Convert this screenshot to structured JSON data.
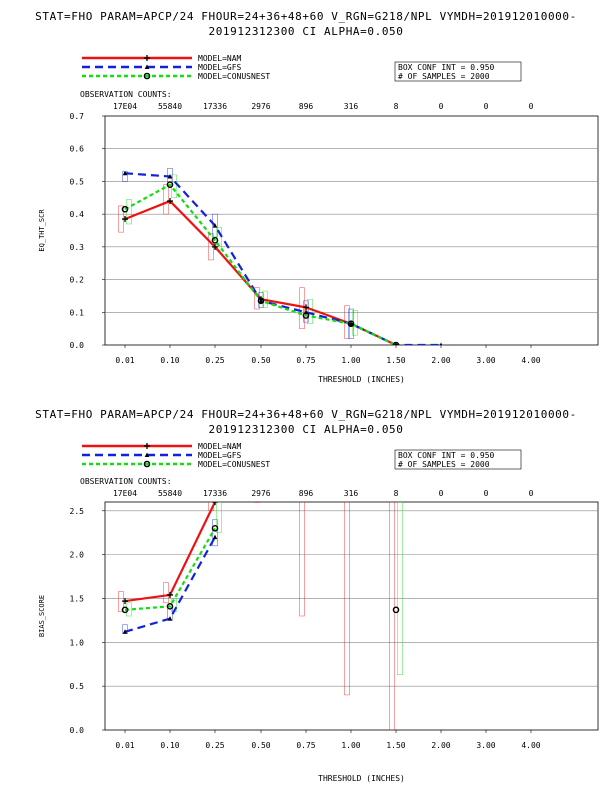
{
  "charts": [
    {
      "header_line1": "STAT=FHO PARAM=APCP/24 FHOUR=24+36+48+60 V_RGN=G218/NPL VYMDH=201912010000-",
      "header_line2": "201912312300 CI ALPHA=0.050",
      "legend": [
        "MODEL=NAM",
        "MODEL=GFS",
        "MODEL=CONUSNEST"
      ],
      "box_conf_int": "BOX CONF INT = 0.950",
      "num_samples": "# OF SAMPLES =  2000",
      "obs_label": "OBSERVATION COUNTS:",
      "obs_counts": [
        "17E04",
        "55840",
        "17336",
        "2976",
        "896",
        "316",
        "8",
        "0",
        "0",
        "0"
      ],
      "thresholds": [
        "0.01",
        "0.10",
        "0.25",
        "0.50",
        "0.75",
        "1.00",
        "1.50",
        "2.00",
        "3.00",
        "4.00"
      ],
      "xlabel": "THRESHOLD (INCHES)",
      "ylabel": "EQ_THT_SCR",
      "y_ticks": [
        "0.0",
        "0.1",
        "0.2",
        "0.3",
        "0.4",
        "0.5",
        "0.6",
        "0.7"
      ]
    },
    {
      "header_line1": "STAT=FHO PARAM=APCP/24 FHOUR=24+36+48+60 V_RGN=G218/NPL VYMDH=201912010000-",
      "header_line2": "201912312300 CI ALPHA=0.050",
      "legend": [
        "MODEL=NAM",
        "MODEL=GFS",
        "MODEL=CONUSNEST"
      ],
      "box_conf_int": "BOX CONF INT = 0.950",
      "num_samples": "# OF SAMPLES =  2000",
      "obs_label": "OBSERVATION COUNTS:",
      "obs_counts": [
        "17E04",
        "55840",
        "17336",
        "2976",
        "896",
        "316",
        "8",
        "0",
        "0",
        "0"
      ],
      "thresholds": [
        "0.01",
        "0.10",
        "0.25",
        "0.50",
        "0.75",
        "1.00",
        "1.50",
        "2.00",
        "3.00",
        "4.00"
      ],
      "xlabel": "THRESHOLD (INCHES)",
      "ylabel": "BIAS_SCORE",
      "y_ticks": [
        "0.0",
        "0.5",
        "1.0",
        "1.5",
        "2.0",
        "2.5"
      ]
    }
  ],
  "colors": {
    "NAM": "#ee1111",
    "GFS": "#1122dd",
    "CONUSNEST": "#11dd11",
    "grid": "#888888"
  },
  "chart_data": [
    {
      "type": "line",
      "title": "STAT=FHO PARAM=APCP/24 FHOUR=24+36+48+60 V_RGN=G218/NPL VYMDH=201912010000-201912312300 CI ALPHA=0.050",
      "xlabel": "THRESHOLD (INCHES)",
      "ylabel": "EQ_THT_SCR",
      "categories": [
        "0.01",
        "0.10",
        "0.25",
        "0.50",
        "0.75",
        "1.00",
        "1.50",
        "2.00",
        "3.00",
        "4.00"
      ],
      "ylim": [
        0,
        0.7
      ],
      "y_ticks": [
        0,
        0.1,
        0.2,
        0.3,
        0.4,
        0.5,
        0.6,
        0.7
      ],
      "grid": true,
      "legend": "top-left",
      "series": [
        {
          "name": "MODEL=NAM",
          "values": [
            0.385,
            0.44,
            0.3,
            0.14,
            0.115,
            0.065,
            0.0,
            null,
            null,
            null
          ]
        },
        {
          "name": "MODEL=GFS",
          "values": [
            0.525,
            0.515,
            0.365,
            0.135,
            0.1,
            0.065,
            0.0,
            0.0,
            null,
            null
          ]
        },
        {
          "name": "MODEL=CONUSNEST",
          "values": [
            0.415,
            0.49,
            0.32,
            0.135,
            0.09,
            0.065,
            0.0,
            null,
            null,
            null
          ]
        }
      ],
      "ci_boxes": [
        {
          "name": "MODEL=NAM",
          "boxes": [
            [
              0.345,
              0.425
            ],
            [
              0.4,
              0.49
            ],
            [
              0.26,
              0.34
            ],
            [
              0.11,
              0.175
            ],
            [
              0.05,
              0.175
            ],
            [
              0.02,
              0.12
            ],
            null,
            null,
            null,
            null
          ]
        },
        {
          "name": "MODEL=GFS",
          "boxes": [
            [
              0.5,
              0.53
            ],
            [
              0.49,
              0.54
            ],
            [
              0.33,
              0.4
            ],
            [
              0.115,
              0.16
            ],
            [
              0.07,
              0.135
            ],
            [
              0.02,
              0.11
            ],
            null,
            null,
            null,
            null
          ]
        },
        {
          "name": "MODEL=CONUSNEST",
          "boxes": [
            [
              0.37,
              0.445
            ],
            [
              0.45,
              0.52
            ],
            [
              0.29,
              0.36
            ],
            [
              0.115,
              0.165
            ],
            [
              0.065,
              0.14
            ],
            [
              0.03,
              0.105
            ],
            null,
            null,
            null,
            null
          ]
        }
      ]
    },
    {
      "type": "line",
      "title": "STAT=FHO PARAM=APCP/24 FHOUR=24+36+48+60 V_RGN=G218/NPL VYMDH=201912010000-201912312300 CI ALPHA=0.050",
      "xlabel": "THRESHOLD (INCHES)",
      "ylabel": "BIAS_SCORE",
      "categories": [
        "0.01",
        "0.10",
        "0.25",
        "0.50",
        "0.75",
        "1.00",
        "1.50",
        "2.00",
        "3.00",
        "4.00"
      ],
      "ylim": [
        0,
        2.6
      ],
      "y_ticks": [
        0,
        0.5,
        1.0,
        1.5,
        2.0,
        2.5
      ],
      "grid": true,
      "legend": "top-left",
      "series": [
        {
          "name": "MODEL=NAM",
          "values": [
            1.47,
            1.54,
            2.6,
            null,
            null,
            null,
            null,
            null,
            null,
            null
          ]
        },
        {
          "name": "MODEL=GFS",
          "values": [
            1.12,
            1.27,
            2.2,
            null,
            null,
            null,
            null,
            null,
            null,
            null
          ]
        },
        {
          "name": "MODEL=CONUSNEST",
          "values": [
            1.37,
            1.41,
            2.3,
            null,
            null,
            null,
            1.37,
            null,
            null,
            null
          ]
        }
      ],
      "ci_boxes": [
        {
          "name": "MODEL=NAM",
          "boxes": [
            [
              1.35,
              1.58
            ],
            [
              1.45,
              1.68
            ],
            [
              2.5,
              2.6
            ],
            [
              2.6,
              2.6
            ],
            [
              1.3,
              2.6
            ],
            [
              0.4,
              2.6
            ],
            [
              0.0,
              2.6
            ],
            null,
            null,
            null
          ]
        },
        {
          "name": "MODEL=GFS",
          "boxes": [
            [
              1.1,
              1.2
            ],
            [
              1.25,
              1.4
            ],
            [
              2.1,
              2.4
            ],
            null,
            null,
            null,
            null,
            null,
            null,
            null
          ]
        },
        {
          "name": "MODEL=CONUSNEST",
          "boxes": [
            [
              1.3,
              1.45
            ],
            [
              1.35,
              1.5
            ],
            [
              2.25,
              2.6
            ],
            null,
            null,
            null,
            [
              0.63,
              2.6
            ],
            null,
            null,
            null
          ]
        }
      ]
    }
  ]
}
